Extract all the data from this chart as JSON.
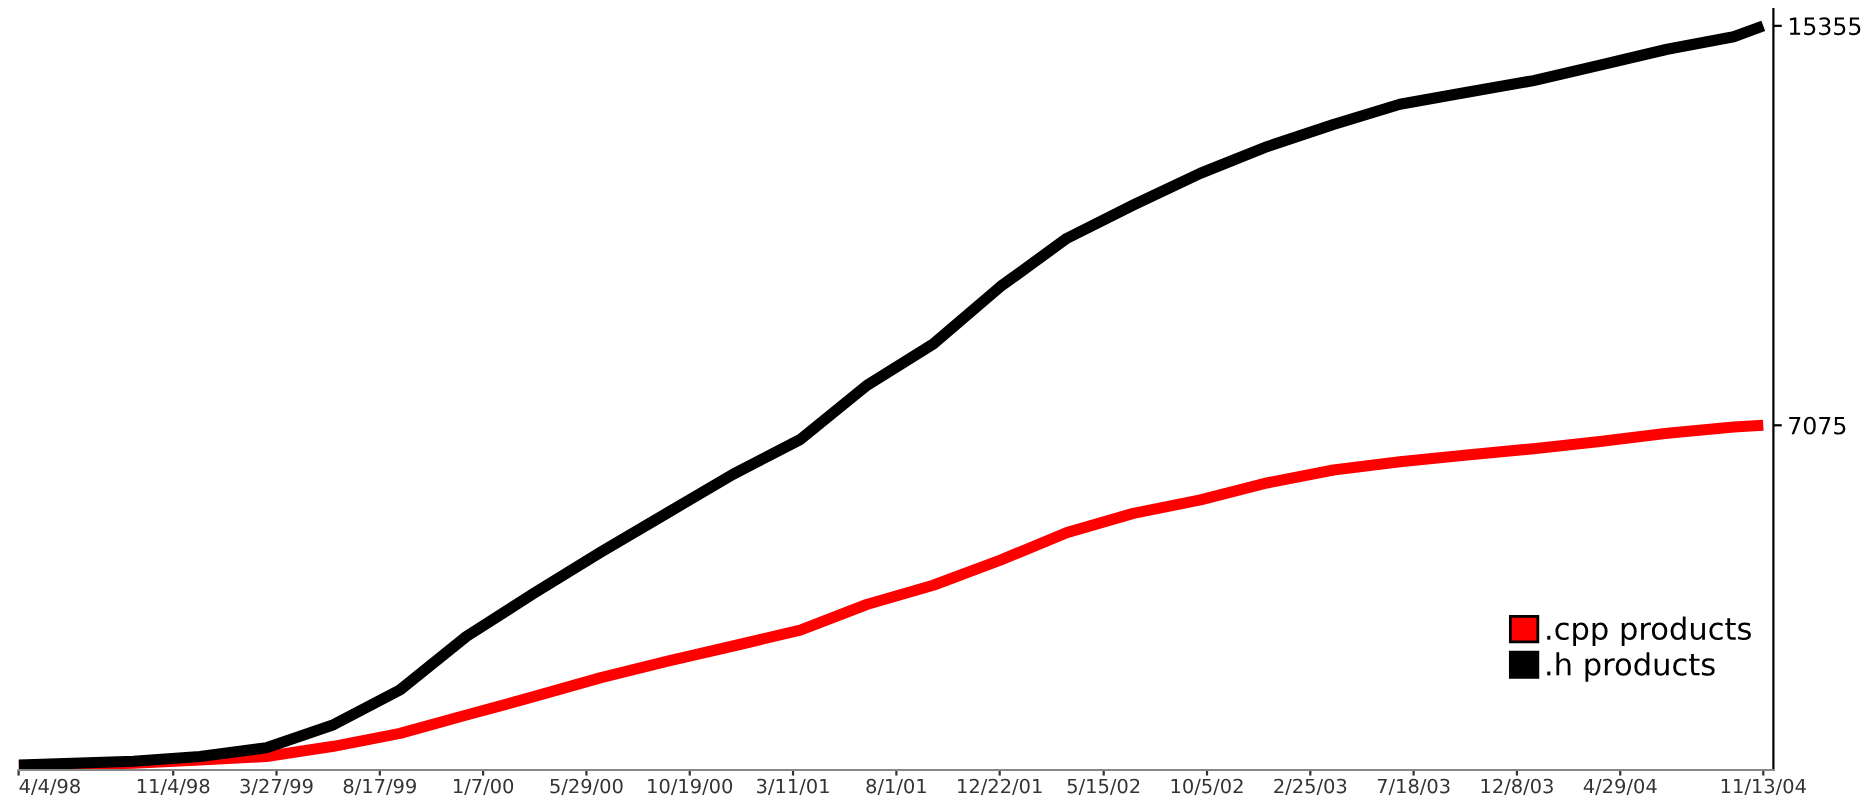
{
  "chart_data": {
    "type": "line",
    "x": [
      "1998-04-04",
      "1998-09-10",
      "1998-12-11",
      "1999-03-13",
      "1999-06-14",
      "1999-09-14",
      "1999-12-15",
      "2000-03-17",
      "2000-06-17",
      "2000-09-17",
      "2000-12-18",
      "2001-03-21",
      "2001-06-21",
      "2001-09-21",
      "2001-12-23",
      "2002-03-25",
      "2002-06-25",
      "2002-09-26",
      "2002-12-27",
      "2003-03-29",
      "2003-06-29",
      "2003-09-30",
      "2003-12-31",
      "2004-04-01",
      "2004-07-03",
      "2004-10-03",
      "2004-11-13"
    ],
    "series": [
      {
        "name": ".cpp products",
        "color": "#ff0000",
        "values": [
          10,
          70,
          140,
          210,
          420,
          690,
          1070,
          1450,
          1840,
          2180,
          2500,
          2830,
          3360,
          3760,
          4280,
          4850,
          5250,
          5530,
          5880,
          6150,
          6320,
          6460,
          6590,
          6740,
          6910,
          7040,
          7075
        ]
      },
      {
        "name": ".h products",
        "color": "#000000",
        "values": [
          30,
          110,
          210,
          390,
          870,
          1590,
          2700,
          3590,
          4440,
          5250,
          6060,
          6780,
          7900,
          8760,
          9950,
          10950,
          11640,
          12300,
          12850,
          13310,
          13730,
          13980,
          14220,
          14540,
          14870,
          15130,
          15355
        ]
      }
    ],
    "xlim": [
      "1998-04-04",
      "2004-11-27"
    ],
    "xticks": [
      {
        "value": "1998-04-04",
        "label": "4/4/98"
      },
      {
        "value": "1998-11-04",
        "label": "11/4/98"
      },
      {
        "value": "1999-03-27",
        "label": "3/27/99"
      },
      {
        "value": "1999-08-17",
        "label": "8/17/99"
      },
      {
        "value": "2000-01-07",
        "label": "1/7/00"
      },
      {
        "value": "2000-05-29",
        "label": "5/29/00"
      },
      {
        "value": "2000-10-19",
        "label": "10/19/00"
      },
      {
        "value": "2001-03-11",
        "label": "3/11/01"
      },
      {
        "value": "2001-08-01",
        "label": "8/1/01"
      },
      {
        "value": "2001-12-22",
        "label": "12/22/01"
      },
      {
        "value": "2002-05-15",
        "label": "5/15/02"
      },
      {
        "value": "2002-10-05",
        "label": "10/5/02"
      },
      {
        "value": "2003-02-25",
        "label": "2/25/03"
      },
      {
        "value": "2003-07-18",
        "label": "7/18/03"
      },
      {
        "value": "2003-12-08",
        "label": "12/8/03"
      },
      {
        "value": "2004-04-29",
        "label": "4/29/04"
      },
      {
        "value": "2004-11-13",
        "label": "11/13/04"
      }
    ],
    "ylim": [
      -70,
      15700
    ],
    "yticks": [
      7075,
      15355
    ],
    "legend": "bottom right",
    "grid": false
  }
}
